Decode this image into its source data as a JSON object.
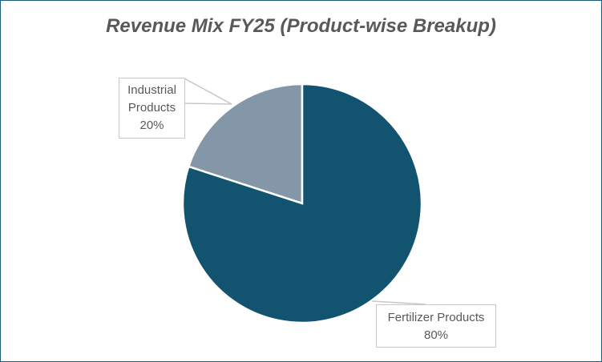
{
  "chart_data": {
    "type": "pie",
    "title": "Revenue Mix FY25 (Product-wise Breakup)",
    "slices": [
      {
        "name": "Fertilizer Products",
        "value": 80,
        "label": "80%",
        "color": "#12546f"
      },
      {
        "name": "Industrial Products",
        "value": 20,
        "label": "20%",
        "color": "#8497a8"
      }
    ],
    "start_angle": "12 o'clock, clockwise",
    "legend": "none"
  },
  "labels": {
    "industrial_line1": "Industrial",
    "industrial_line2": "Products",
    "industrial_pct": "20%",
    "fertilizer_name": "Fertilizer Products",
    "fertilizer_pct": "80%"
  }
}
